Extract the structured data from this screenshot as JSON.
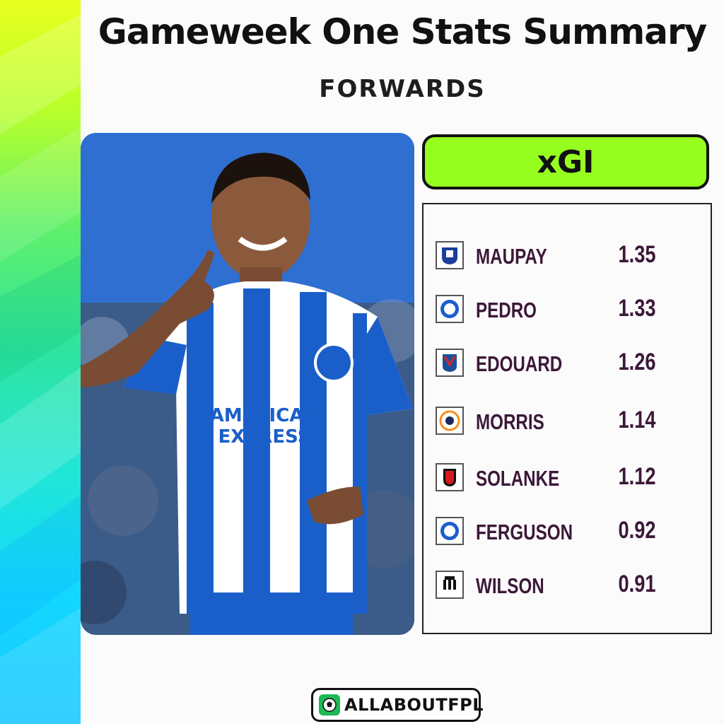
{
  "header": {
    "title": "Gameweek One Stats Summary",
    "subtitle": "FORWARDS"
  },
  "stat": {
    "label": "xGI",
    "header_color": "#97ff1f"
  },
  "photo": {
    "shirt_sponsor_line1": "AMERICAN",
    "shirt_sponsor_line2": "EXPRESS"
  },
  "players": [
    {
      "name": "MAUPAY",
      "value": "1.35",
      "club_icon": "everton-crest-icon"
    },
    {
      "name": "PEDRO",
      "value": "1.33",
      "club_icon": "brighton-crest-icon"
    },
    {
      "name": "EDOUARD",
      "value": "1.26",
      "club_icon": "crystal-palace-crest-icon"
    },
    {
      "name": "MORRIS",
      "value": "1.14",
      "club_icon": "luton-town-crest-icon"
    },
    {
      "name": "SOLANKE",
      "value": "1.12",
      "club_icon": "bournemouth-crest-icon"
    },
    {
      "name": "FERGUSON",
      "value": "0.92",
      "club_icon": "brighton-crest-icon"
    },
    {
      "name": "WILSON",
      "value": "0.91",
      "club_icon": "newcastle-crest-icon"
    }
  ],
  "footer": {
    "logo_text": "ALLABOUTFPL"
  },
  "colors": {
    "name_text": "#3c1838",
    "accent_green": "#97ff1f"
  }
}
